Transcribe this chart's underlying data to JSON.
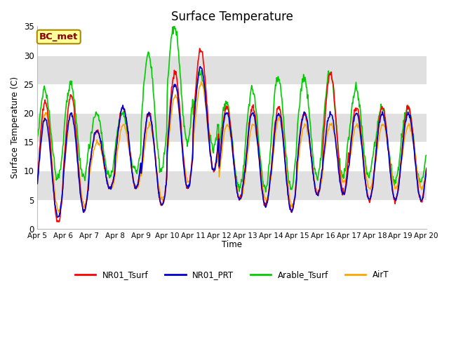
{
  "title": "Surface Temperature",
  "ylabel": "Surface Temperature (C)",
  "xlabel": "Time",
  "annotation_text": "BC_met",
  "annotation_color": "#8B0000",
  "annotation_bg": "#FFFF99",
  "ylim": [
    0,
    35
  ],
  "ytick_vals": [
    0,
    5,
    10,
    15,
    20,
    25,
    30,
    35
  ],
  "xtick_labels": [
    "Apr 5",
    "Apr 6",
    "Apr 7",
    "Apr 8",
    "Apr 9",
    "Apr 10",
    "Apr 11",
    "Apr 12",
    "Apr 13",
    "Apr 14",
    "Apr 15",
    "Apr 16",
    "Apr 17",
    "Apr 18",
    "Apr 19",
    "Apr 20"
  ],
  "colors": {
    "NR01_Tsurf": "#FF0000",
    "NR01_PRT": "#0000CD",
    "Arable_Tsurf": "#00CC00",
    "AirT": "#FFA500"
  },
  "line_width": 1.2,
  "bg_band_color": "#E0E0E0",
  "bg_band_ranges": [
    [
      5,
      10
    ],
    [
      15,
      20
    ],
    [
      25,
      30
    ]
  ],
  "grid_color": "#FFFFFF",
  "fig_bg": "#FFFFFF",
  "plot_bg": "#FFFFFF"
}
